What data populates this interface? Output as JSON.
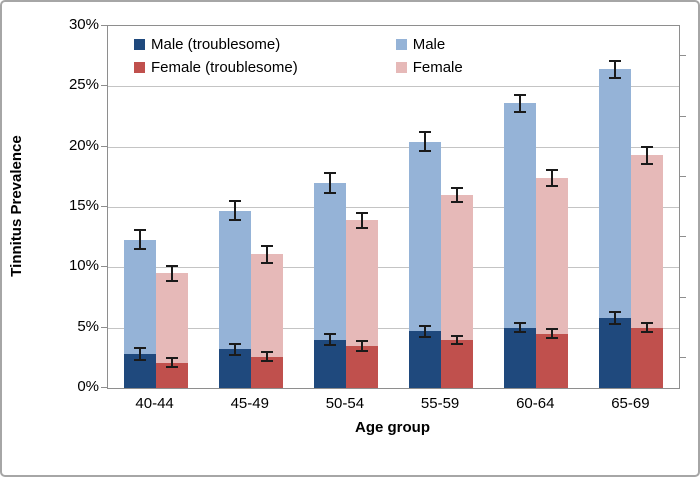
{
  "chart_data": {
    "type": "bar",
    "title": "",
    "xlabel": "Age group",
    "ylabel": "Tinnitus Prevalence",
    "ylim": [
      0,
      30
    ],
    "ytick_step": 5,
    "yticks": [
      "0%",
      "5%",
      "10%",
      "15%",
      "20%",
      "25%",
      "30%"
    ],
    "grid": true,
    "legend_position": "top-left-inside",
    "categories": [
      "40-44",
      "45-49",
      "50-54",
      "55-59",
      "60-64",
      "65-69"
    ],
    "series": [
      {
        "name": "Male (troublesome)",
        "color": "#1F497D",
        "layer": "front",
        "pair": "male",
        "values": [
          2.8,
          3.2,
          4.0,
          4.7,
          5.0,
          5.8
        ],
        "errors": [
          0.5,
          0.45,
          0.45,
          0.45,
          0.4,
          0.5
        ]
      },
      {
        "name": "Female (troublesome)",
        "color": "#C0504D",
        "layer": "front",
        "pair": "female",
        "values": [
          2.1,
          2.6,
          3.5,
          4.0,
          4.5,
          5.0
        ],
        "errors": [
          0.4,
          0.35,
          0.4,
          0.35,
          0.35,
          0.4
        ]
      },
      {
        "name": "Male",
        "color": "#95B3D7",
        "layer": "back",
        "pair": "male",
        "values": [
          12.3,
          14.7,
          17.0,
          20.4,
          23.6,
          26.4
        ],
        "errors": [
          0.8,
          0.8,
          0.8,
          0.8,
          0.7,
          0.7
        ]
      },
      {
        "name": "Female",
        "color": "#E6B9B8",
        "layer": "back",
        "pair": "female",
        "values": [
          9.5,
          11.1,
          13.9,
          16.0,
          17.4,
          19.3
        ],
        "errors": [
          0.6,
          0.7,
          0.6,
          0.6,
          0.7,
          0.7
        ]
      }
    ],
    "style_colors": {
      "gridline": "#c4c4c4",
      "axis": "#8e8e8e",
      "error_bar": "#1a1a1a"
    }
  }
}
